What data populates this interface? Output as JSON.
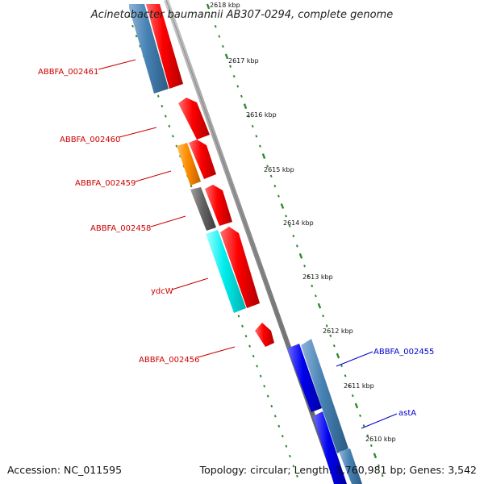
{
  "title": "Acinetobacter baumannii AB307-0294, complete genome",
  "accession": "Accession: NC_011595",
  "topology": "Topology: circular; Length: 3,760,981 bp; Genes: 3,542",
  "ticks": [
    "2618 kbp",
    "2617 kbp",
    "2616 kbp",
    "2615 kbp",
    "2614 kbp",
    "2613 kbp",
    "2612 kbp",
    "2611 kbp",
    "2610 kbp"
  ],
  "gene_labels": [
    {
      "text": "ABBFA_002461",
      "color": "#cc0000"
    },
    {
      "text": "ABBFA_002460",
      "color": "#cc0000"
    },
    {
      "text": "ABBFA_002459",
      "color": "#cc0000"
    },
    {
      "text": "ABBFA_002458",
      "color": "#cc0000"
    },
    {
      "text": "ydcW",
      "color": "#cc0000"
    },
    {
      "text": "ABBFA_002456",
      "color": "#cc0000"
    },
    {
      "text": "ABBFA_002455",
      "color": "#0000cc"
    },
    {
      "text": "astA",
      "color": "#0000cc"
    }
  ],
  "colors": {
    "backbone": "#8c8c8c",
    "tick": "#2e8b2e",
    "red_gene": "#ff0000",
    "blue_gene": "#0000ee",
    "steelblue_gene": "#4682b4",
    "orange_gene": "#ff8c00",
    "gray_gene": "#666666",
    "cyan_gene": "#00eeee"
  }
}
